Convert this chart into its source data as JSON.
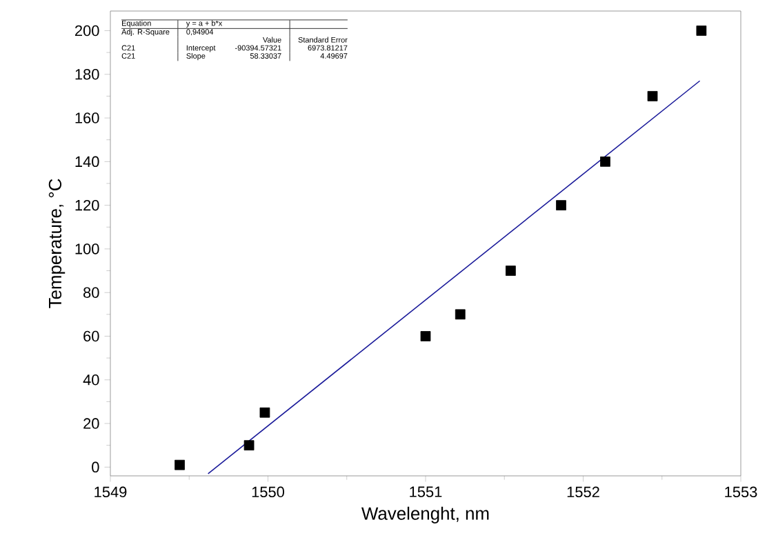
{
  "chart_data": {
    "type": "scatter",
    "xlabel": "Wavelenght, nm",
    "ylabel": "Temperature, °C",
    "xlim": [
      1549,
      1553
    ],
    "xticks": [
      1549,
      1550,
      1551,
      1552,
      1553
    ],
    "ylim": [
      -4,
      209
    ],
    "yticks": [
      0,
      20,
      40,
      60,
      80,
      100,
      120,
      140,
      160,
      180,
      200
    ],
    "marker": "square",
    "series": [
      {
        "color": "#000000",
        "x": [
          1549.44,
          1549.88,
          1549.98,
          1551.0,
          1551.22,
          1551.54,
          1551.86,
          1552.14,
          1552.44,
          1552.75
        ],
        "values": [
          1,
          10,
          25,
          60,
          70,
          90,
          120,
          140,
          170,
          200
        ]
      },
      {
        "type": "line",
        "color": "#1a1a9a",
        "marker": "none",
        "x": [
          1549.62,
          1552.74
        ],
        "values": [
          -3,
          177
        ]
      }
    ],
    "annotations": [
      "Equation",
      "y = a + b*x",
      "Adj. R-Square",
      "0,94904",
      "Value",
      "Standard Error",
      "C21",
      "Intercept",
      "-90394.57321",
      "6973.81217",
      "C21",
      "Slope",
      "58.33037",
      "4.49697"
    ]
  }
}
